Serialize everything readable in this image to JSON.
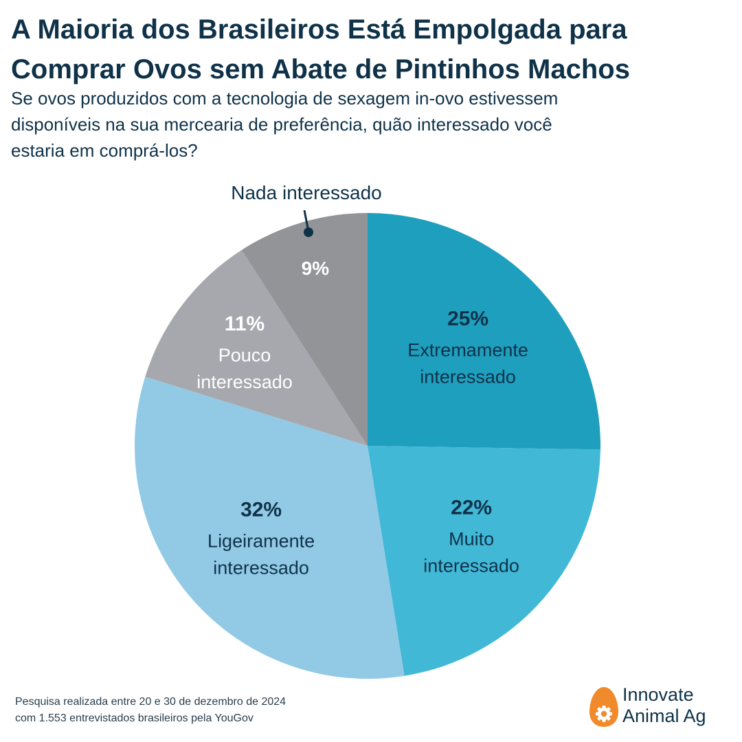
{
  "title_lines": [
    "A Maioria dos Brasileiros Está Empolgada para",
    "Comprar Ovos sem Abate de Pintinhos Machos"
  ],
  "subtitle_lines": [
    "Se ovos produzidos com a tecnologia de sexagem in-ovo estivessem",
    "disponíveis na sua mercearia de preferência, quão interessado você",
    "estaria em comprá-los?"
  ],
  "chart_data": {
    "type": "pie",
    "title": "A Maioria dos Brasileiros Está Empolgada para Comprar Ovos sem Abate de Pintinhos Machos",
    "subtitle": "Se ovos produzidos com a tecnologia de sexagem in-ovo estivessem disponíveis na sua mercearia de preferência, quão interessado você estaria em comprá-los?",
    "start_angle_deg": 0,
    "direction": "clockwise",
    "slices": [
      {
        "label": "Extremamente interessado",
        "label_lines": [
          "Extremamente",
          "interessado"
        ],
        "value": 25,
        "value_label": "25%",
        "color": "#1f9fbe",
        "text_color": "#0f3249"
      },
      {
        "label": "Muito interessado",
        "label_lines": [
          "Muito",
          "interessado"
        ],
        "value": 22,
        "value_label": "22%",
        "color": "#42b8d7",
        "text_color": "#0f3249"
      },
      {
        "label": "Ligeiramente interessado",
        "label_lines": [
          "Ligeiramente",
          "interessado"
        ],
        "value": 32,
        "value_label": "32%",
        "color": "#92cae6",
        "text_color": "#0f3249"
      },
      {
        "label": "Pouco interessado",
        "label_lines": [
          "Pouco",
          "interessado"
        ],
        "value": 11,
        "value_label": "11%",
        "color": "#a7a8ad",
        "text_color": "#ffffff"
      },
      {
        "label": "Nada interessado",
        "label_lines": [
          "Nada interessado"
        ],
        "value": 9,
        "value_label": "9%",
        "color": "#939498",
        "text_color": "#ffffff",
        "label_outside": true
      }
    ]
  },
  "footnote_lines": [
    "Pesquisa realizada entre 20 e 30 de dezembro de 2024",
    "com 1.553 entrevistados brasileiros pela YouGov"
  ],
  "brand": {
    "lines": [
      "Innovate",
      "Animal Ag"
    ],
    "icon": "egg-gear-icon",
    "icon_color": "#f08a2a"
  }
}
